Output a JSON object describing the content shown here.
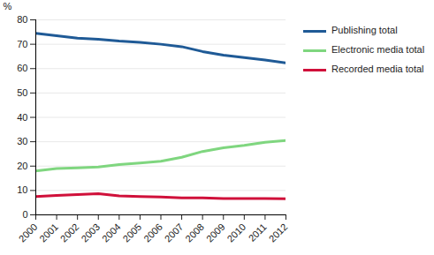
{
  "chart_data": {
    "type": "line",
    "x": [
      2000,
      2001,
      2002,
      2003,
      2004,
      2005,
      2006,
      2007,
      2008,
      2009,
      2010,
      2011,
      2012
    ],
    "xlim": [
      2000,
      2012
    ],
    "xticks": [
      2000,
      2001,
      2002,
      2003,
      2004,
      2005,
      2006,
      2007,
      2008,
      2009,
      2010,
      2011,
      2012
    ],
    "ylabel": "%",
    "ylim": [
      0,
      80
    ],
    "yticks": [
      0,
      10,
      20,
      30,
      40,
      50,
      60,
      70,
      80
    ],
    "grid": true,
    "legend": "right",
    "series": [
      {
        "name": "Publishing total",
        "color": "#1f5a96",
        "values": [
          74.5,
          73.5,
          72.5,
          72,
          71.3,
          70.8,
          70,
          69,
          67,
          65.5,
          64.5,
          63.5,
          62.3
        ]
      },
      {
        "name": "Electronic media total",
        "color": "#7fd67f",
        "values": [
          18,
          19,
          19.3,
          19.6,
          20.6,
          21.3,
          22,
          23.6,
          26,
          27.5,
          28.5,
          29.8,
          30.5
        ]
      },
      {
        "name": "Recorded media total",
        "color": "#d0103a",
        "values": [
          7.5,
          8,
          8.3,
          8.7,
          7.8,
          7.5,
          7.3,
          7,
          7,
          6.7,
          6.7,
          6.7,
          6.6
        ]
      }
    ]
  }
}
